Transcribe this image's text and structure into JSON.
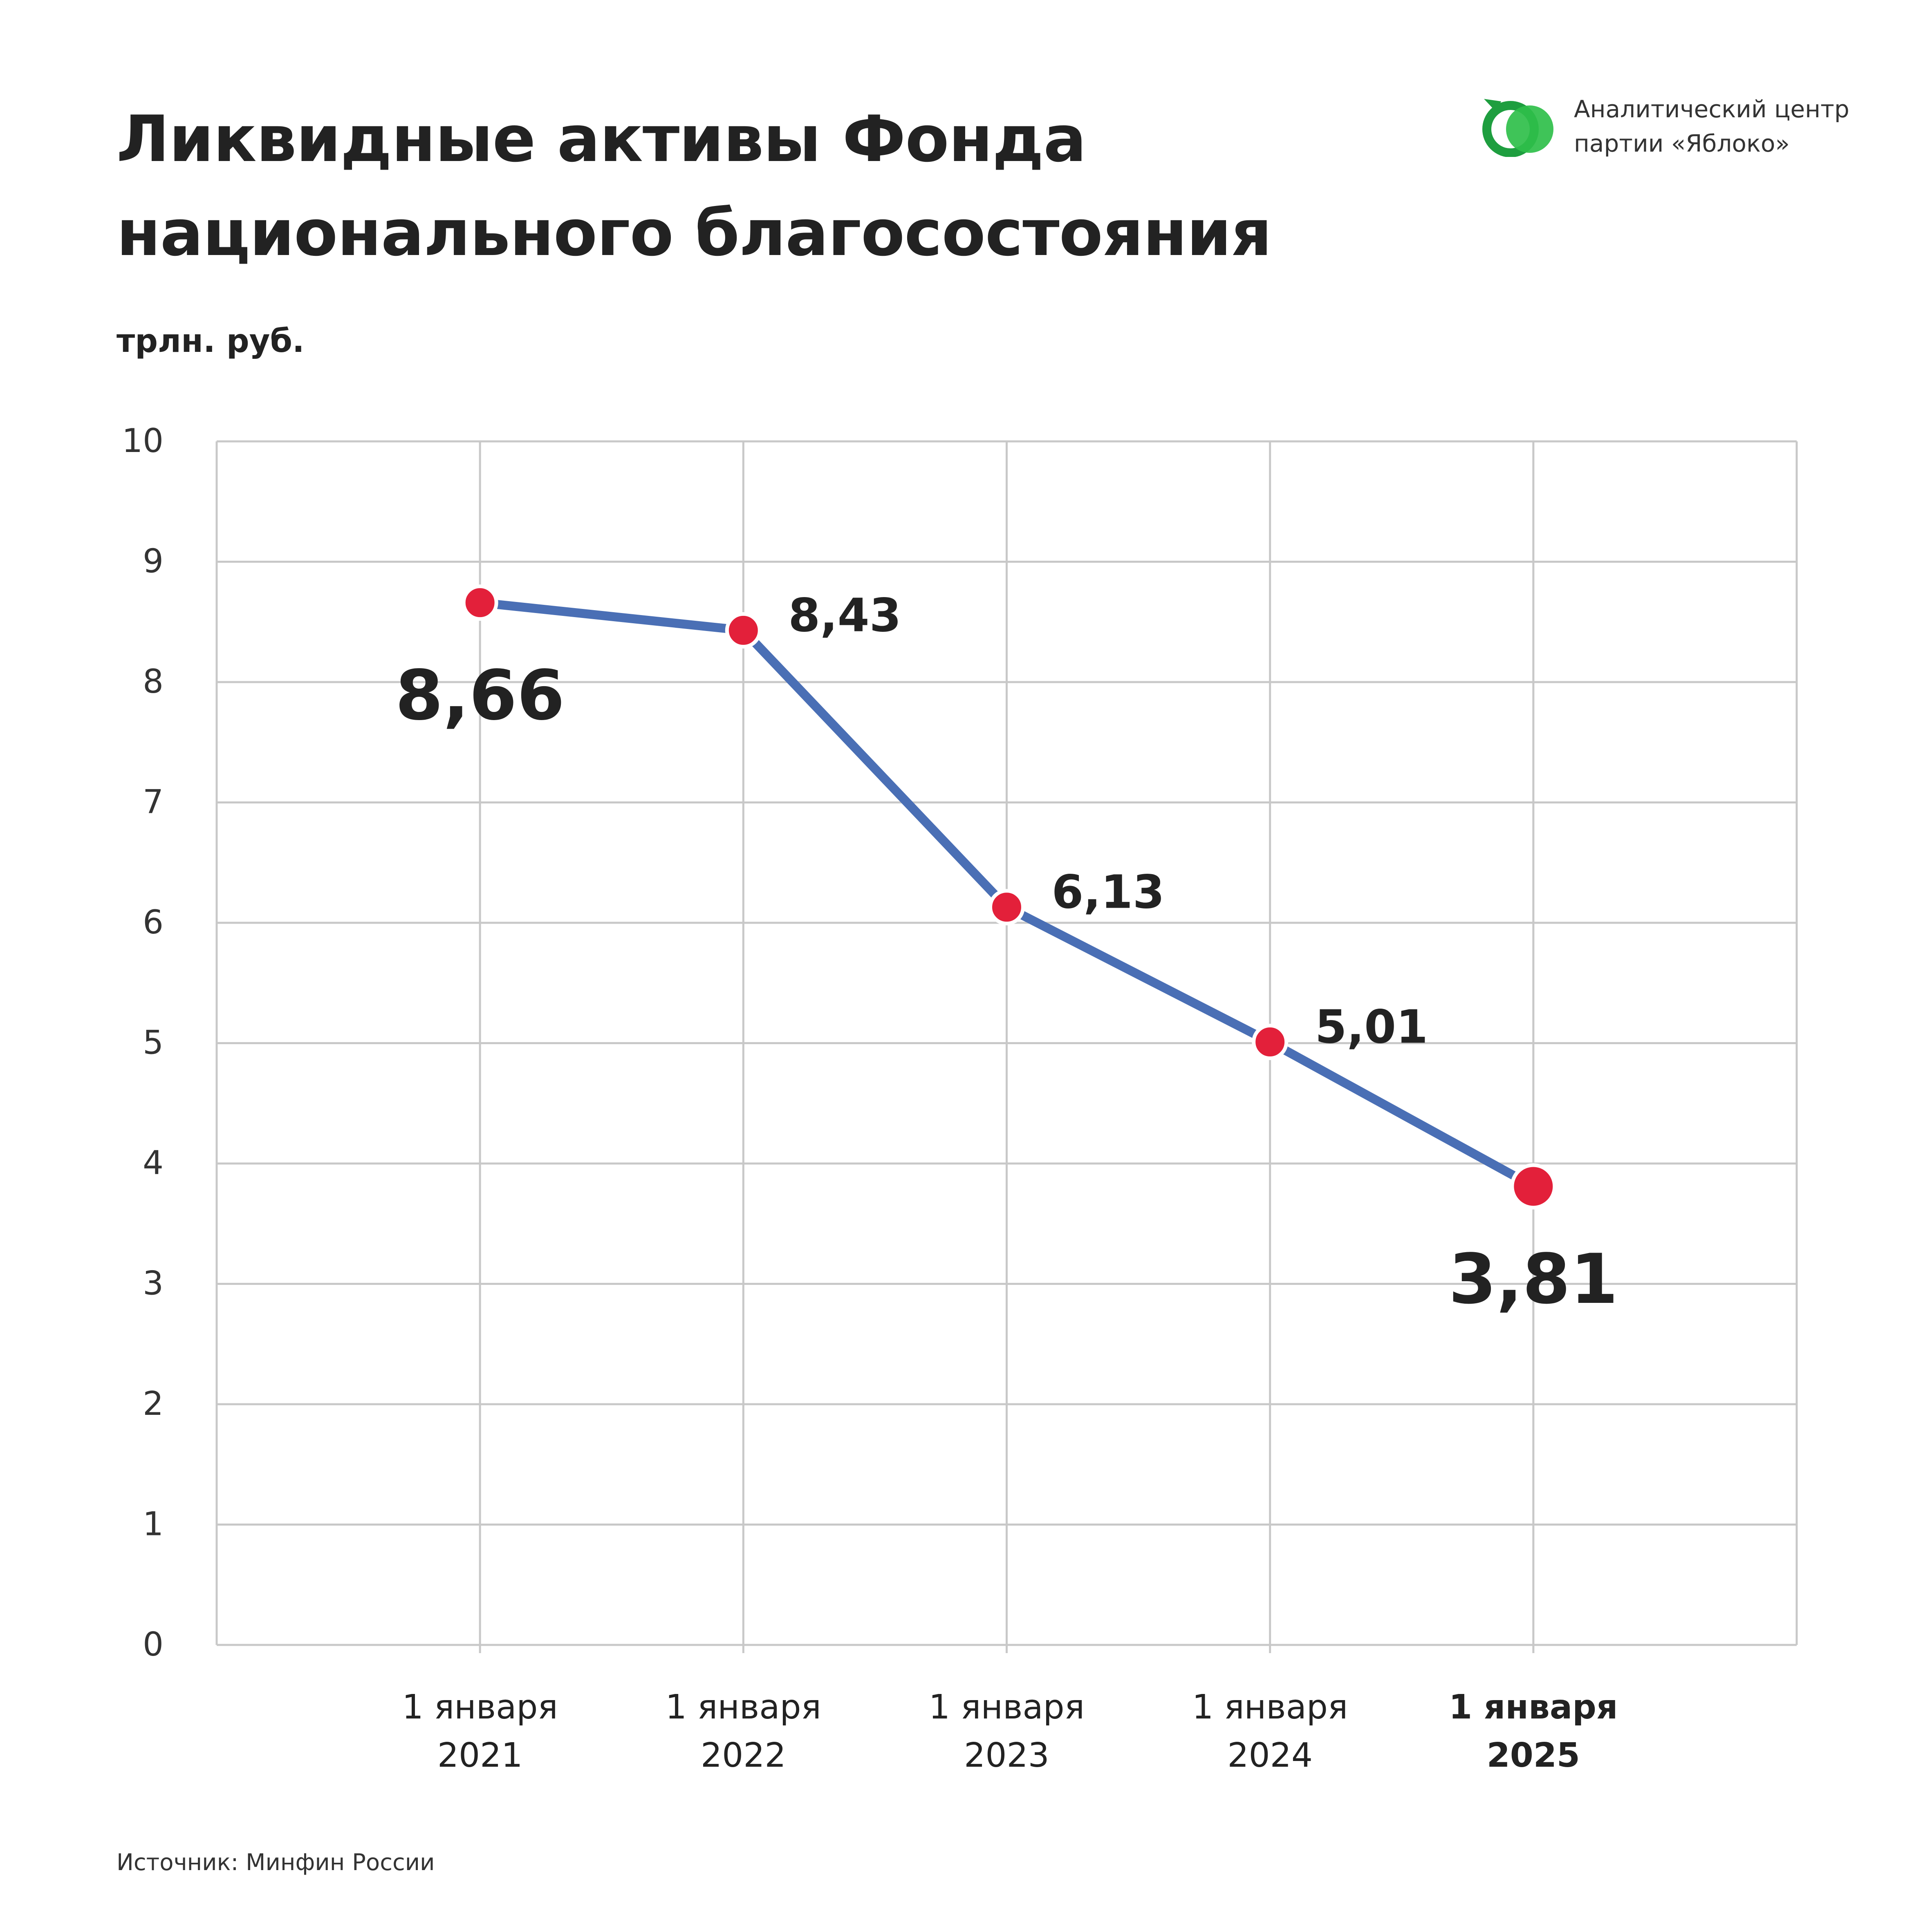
{
  "header": {
    "title_line1": "Ликвидные активы Фонда",
    "title_line2": "национального благосостояния",
    "unit": "трлн. руб."
  },
  "brand": {
    "line1": "Аналитический центр",
    "line2": "партии «Яблоко»",
    "icon": "yabloko-logo-icon",
    "colors": [
      "#1e9e3f",
      "#2fbf4a"
    ]
  },
  "footer": {
    "source": "Источник: Минфин России"
  },
  "chart_data": {
    "type": "line",
    "title": "Ликвидные активы Фонда национального благосостояния",
    "ylabel": "трлн. руб.",
    "xlabel": "",
    "ylim": [
      0,
      10
    ],
    "yticks": [
      "0",
      "1",
      "2",
      "3",
      "4",
      "5",
      "6",
      "7",
      "8",
      "9",
      "10"
    ],
    "grid": true,
    "categories": [
      [
        "1 января",
        "2021"
      ],
      [
        "1 января",
        "2022"
      ],
      [
        "1 января",
        "2023"
      ],
      [
        "1 января",
        "2024"
      ],
      [
        "1 января",
        "2025"
      ]
    ],
    "values": [
      8.66,
      8.43,
      6.13,
      5.01,
      3.81
    ],
    "value_labels": [
      "8,66",
      "8,43",
      "6,13",
      "5,01",
      "3,81"
    ],
    "highlighted": [
      0,
      4
    ],
    "bold_category": 4,
    "colors": {
      "line": "#4a6fb5",
      "marker": "#e3203a",
      "grid": "#c8c8c8"
    }
  }
}
